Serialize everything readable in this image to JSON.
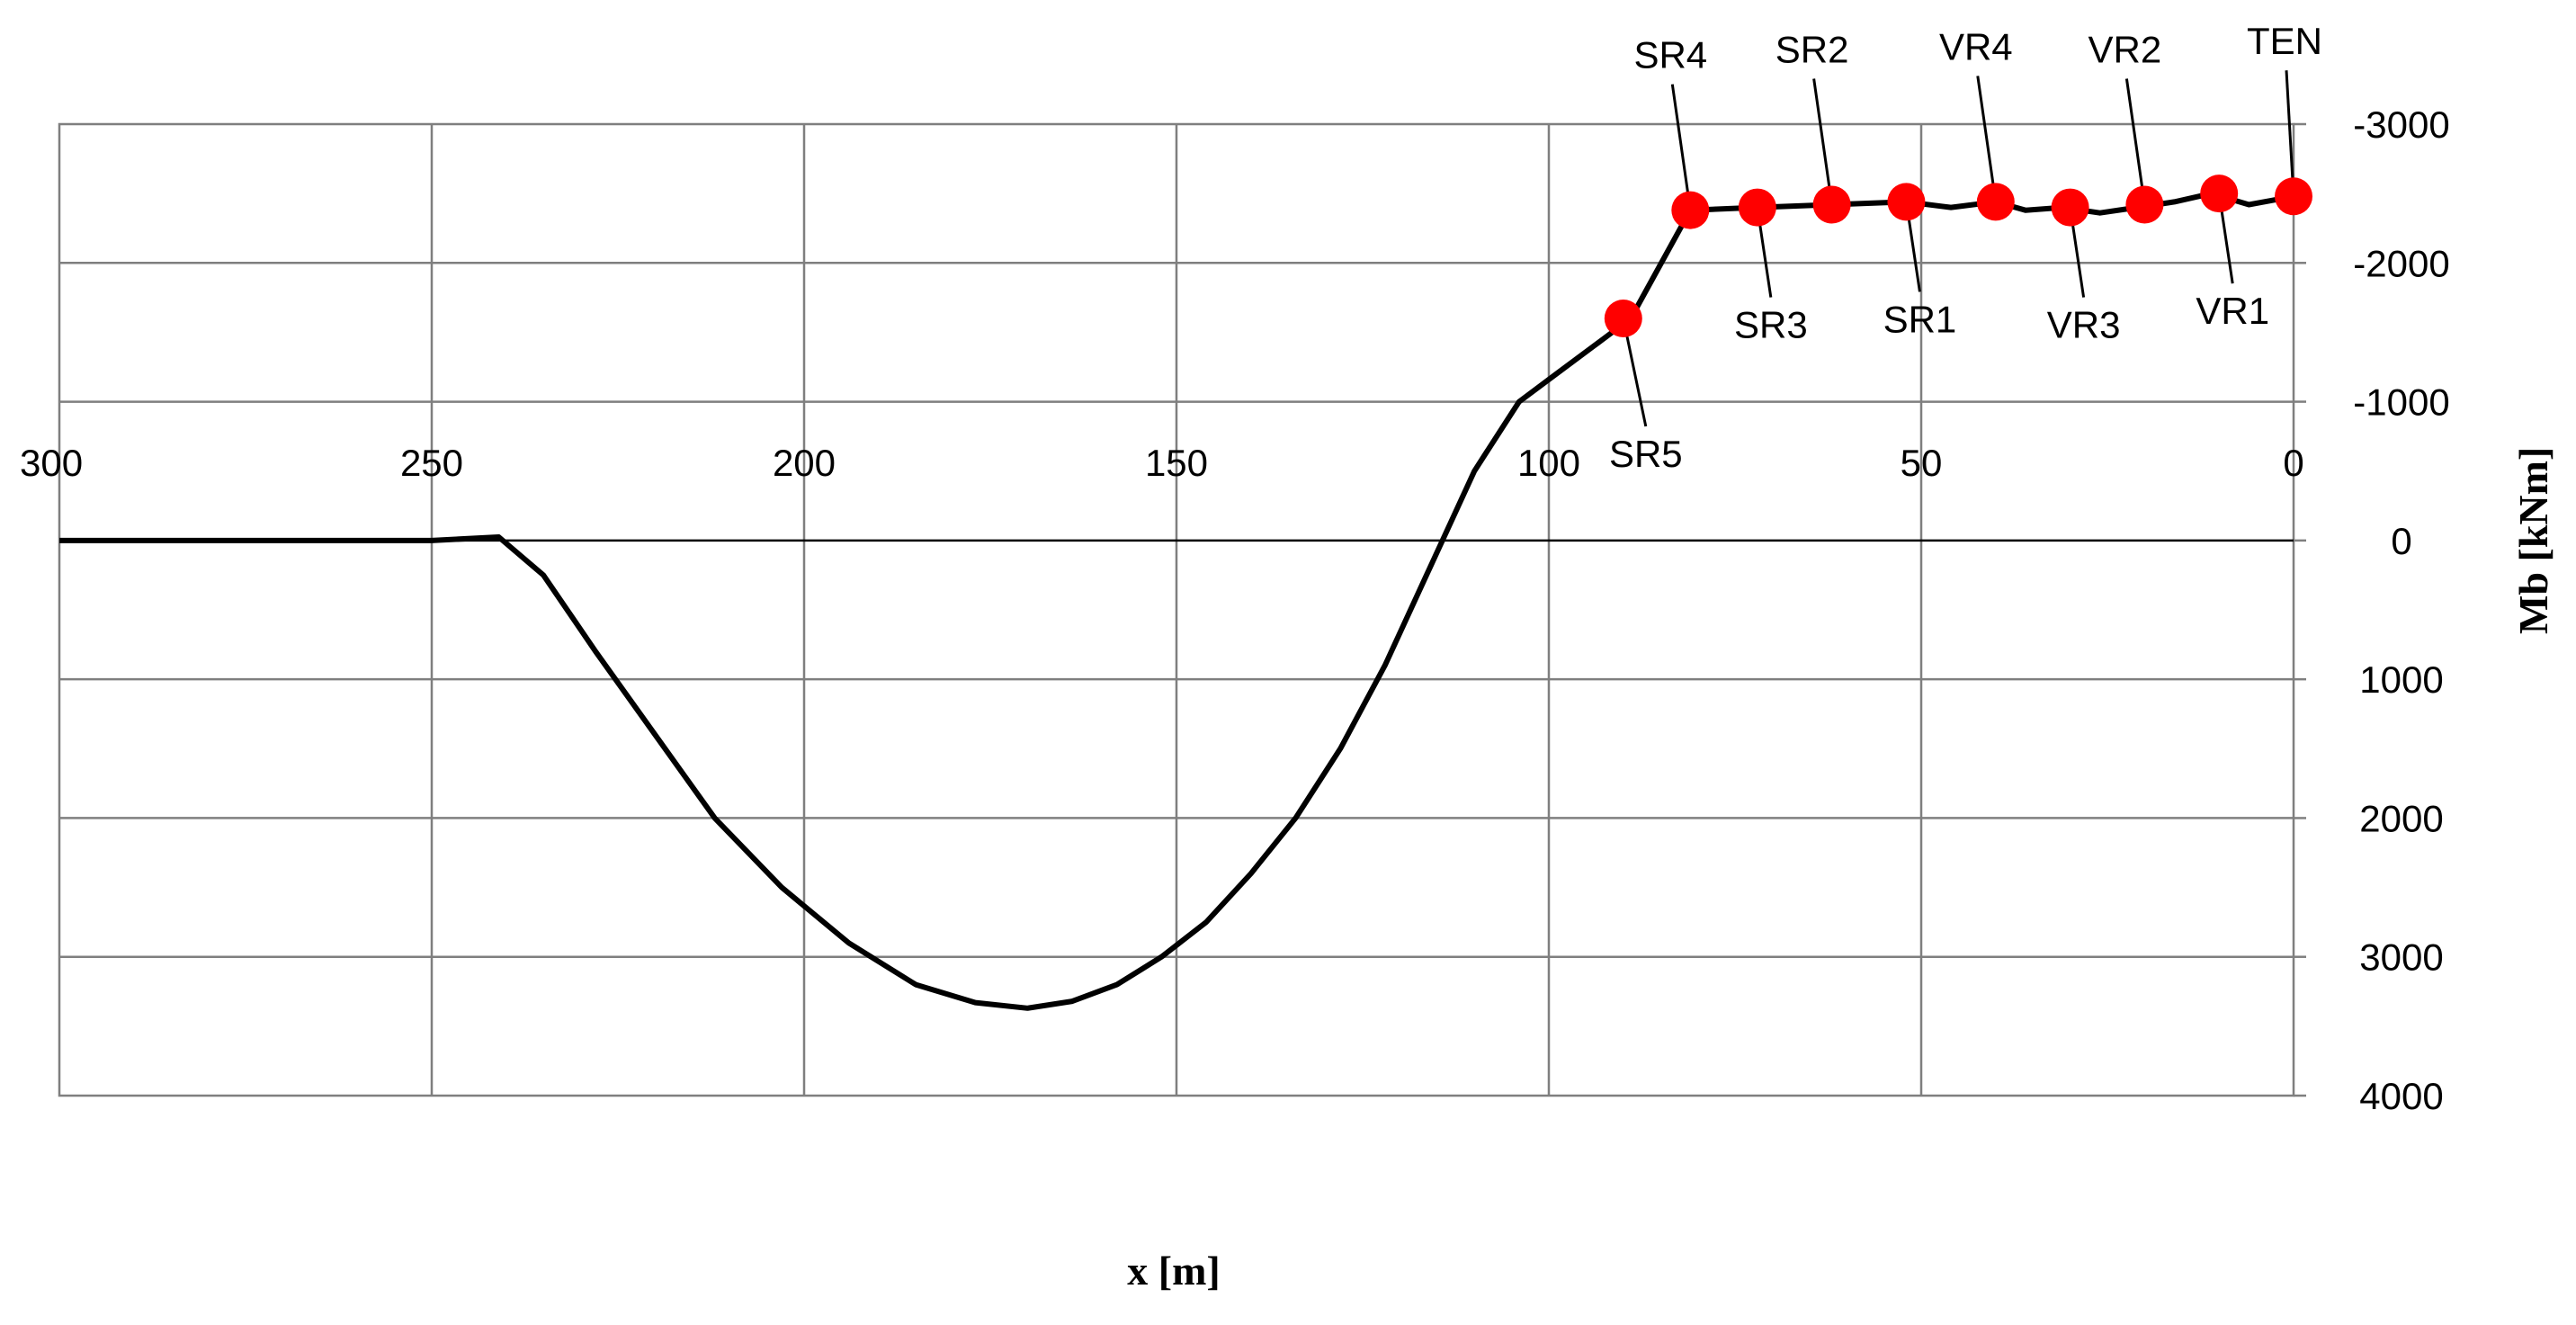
{
  "chart_data": {
    "type": "line",
    "title": "",
    "xlabel": "x [m]",
    "ylabel": "Mb [kNm]",
    "xlim": [
      300,
      0
    ],
    "ylim": [
      4000,
      -3000
    ],
    "x_ticks": [
      "300",
      "250",
      "200",
      "150",
      "100",
      "50",
      "0"
    ],
    "y_ticks": [
      "-3000",
      "-2000",
      "-1000",
      "0",
      "1000",
      "2000",
      "3000",
      "4000"
    ],
    "y_tick_values": [
      -3000,
      -2000,
      -1000,
      0,
      1000,
      2000,
      3000,
      4000
    ],
    "x_tick_values": [
      300,
      250,
      200,
      150,
      100,
      50,
      0
    ],
    "grid": true,
    "series": [
      {
        "color": "#000000",
        "x": [
          300,
          250,
          241,
          235,
          228,
          220,
          212,
          203,
          194,
          185,
          177,
          170,
          164,
          158,
          152,
          146,
          140,
          134,
          128,
          122,
          116,
          110,
          104,
          99,
          94,
          89,
          81,
          72,
          62,
          52,
          46,
          40,
          36,
          31,
          26,
          21,
          16,
          11,
          6,
          3,
          0
        ],
        "y": [
          0,
          0,
          -25,
          250,
          800,
          1400,
          2000,
          2500,
          2900,
          3200,
          3330,
          3370,
          3320,
          3200,
          3000,
          2750,
          2400,
          2000,
          1500,
          900,
          200,
          -500,
          -1000,
          -1200,
          -1400,
          -1600,
          -2380,
          -2400,
          -2420,
          -2440,
          -2400,
          -2440,
          -2380,
          -2400,
          -2360,
          -2400,
          -2440,
          -2500,
          -2420,
          -2450,
          -2480
        ]
      }
    ],
    "points": [
      {
        "label": "SR5",
        "x": 90,
        "y": -1600
      },
      {
        "label": "SR4",
        "x": 81,
        "y": -2380
      },
      {
        "label": "SR3",
        "x": 72,
        "y": -2400
      },
      {
        "label": "SR2",
        "x": 62,
        "y": -2420
      },
      {
        "label": "SR1",
        "x": 52,
        "y": -2440
      },
      {
        "label": "VR4",
        "x": 40,
        "y": -2440
      },
      {
        "label": "VR3",
        "x": 30,
        "y": -2400
      },
      {
        "label": "VR2",
        "x": 20,
        "y": -2420
      },
      {
        "label": "VR1",
        "x": 10,
        "y": -2500
      },
      {
        "label": "TEN",
        "x": 0,
        "y": -2480
      }
    ],
    "marker_color": "#ff0000"
  }
}
